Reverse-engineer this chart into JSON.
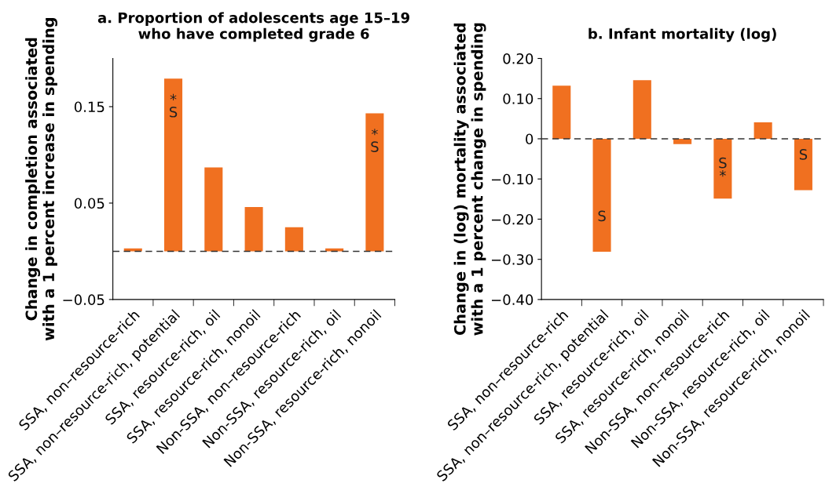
{
  "chart_data": [
    {
      "type": "bar",
      "title": "a. Proportion of adolescents age 15–19\nwho have completed grade 6",
      "ylabel": "Change in completion associated\nwith a 1 percent increase in spending",
      "categories": [
        "SSA, non–resource-rich",
        "SSA, non–resource-rich, potential",
        "SSA, resource-rich, oil",
        "SSA, resource-rich, nonoil",
        "Non-SSA, non–resource-rich",
        "Non-SSA, resource-rich, oil",
        "Non-SSA, resource-rich, nonoil"
      ],
      "values": [
        0.003,
        0.179,
        0.087,
        0.046,
        0.025,
        0.003,
        0.143
      ],
      "color": "#f07020",
      "ylim": [
        -0.05,
        0.2
      ],
      "yticks": [
        {
          "value": -0.05,
          "label": "−0.05"
        },
        0.05,
        0.15
      ],
      "ref_lines": [
        {
          "axis": "y",
          "value": 0,
          "color": "#333333",
          "line_style": "dashed"
        }
      ],
      "value_labels": [
        null,
        "*\nS",
        null,
        null,
        null,
        null,
        "*\nS"
      ],
      "grid": false,
      "legend": false
    },
    {
      "type": "bar",
      "title": "b. Infant mortality (log)",
      "ylabel": "Change in (log) mortality associated\nwith a 1 percent change in spending",
      "categories": [
        "SSA, non–resource-rich",
        "SSA, non–resource-rich, potential",
        "SSA, resource-rich, oil",
        "SSA, resource-rich, nonoil",
        "Non-SSA, non–resource-rich",
        "Non-SSA, resource-rich, oil",
        "Non-SSA, resource-rich, nonoil"
      ],
      "values": [
        0.132,
        -0.281,
        0.146,
        -0.013,
        -0.149,
        0.041,
        -0.128
      ],
      "color": "#f07020",
      "ylim": [
        -0.4,
        0.2
      ],
      "yticks": [
        {
          "value": -0.4,
          "label": "−0.40"
        },
        {
          "value": -0.3,
          "label": "−0.30"
        },
        {
          "value": -0.2,
          "label": "−0.20"
        },
        {
          "value": -0.1,
          "label": "−0.10"
        },
        0,
        {
          "value": 0.1,
          "label": "0.10"
        },
        {
          "value": 0.2,
          "label": "0.20"
        }
      ],
      "ref_lines": [
        {
          "axis": "y",
          "value": 0,
          "color": "#333333",
          "line_style": "dashed"
        }
      ],
      "value_labels": [
        null,
        "S",
        null,
        null,
        "S\n*",
        null,
        "S"
      ],
      "grid": false,
      "legend": false
    }
  ]
}
